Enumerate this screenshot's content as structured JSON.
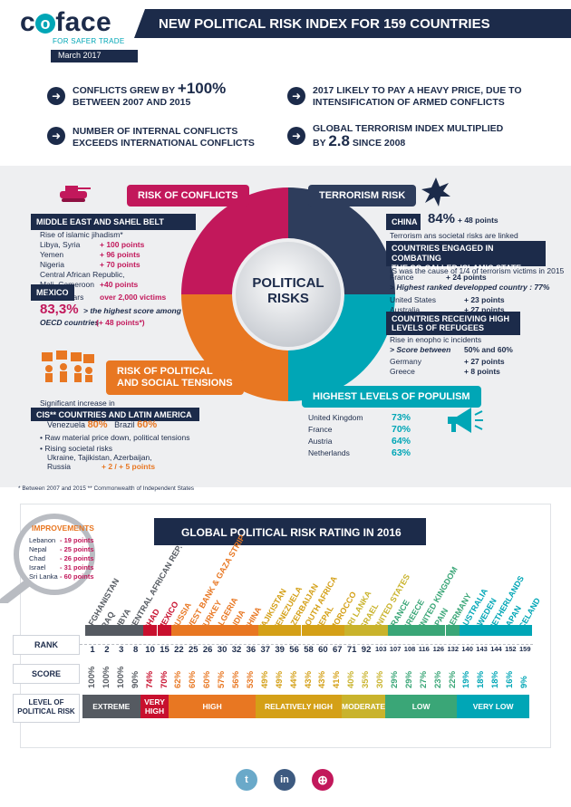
{
  "header": {
    "logo": "coface",
    "tagline": "FOR SAFER TRADE",
    "title": "NEW POLITICAL RISK INDEX FOR 159 COUNTRIES",
    "date": "March 2017"
  },
  "facts": [
    {
      "pre": "CONFLICTS GREW BY ",
      "big": "+100%",
      "post": "BETWEEN 2007 AND 2015"
    },
    {
      "pre": "NUMBER OF INTERNAL CONFLICTS",
      "big": "",
      "post": "EXCEEDS INTERNATIONAL CONFLICTS"
    },
    {
      "pre": "2017 LIKELY TO PAY A HEAVY PRICE, DUE TO",
      "big": "",
      "post": "INTENSIFICATION OF ARMED CONFLICTS"
    },
    {
      "pre": "GLOBAL TERRORISM INDEX MULTIPLIED",
      "big": "2.8",
      "post_pre": "BY ",
      "post": " SINCE 2008"
    }
  ],
  "center": {
    "label": "POLITICAL RISKS"
  },
  "conflicts": {
    "title": "RISK OF CONFLICTS",
    "mesb_band": "MIDDLE EAST AND SAHEL BELT",
    "mesb_sub": "Rise of islamic jihadism*",
    "rows": [
      {
        "name": "Libya, Syria",
        "value": "+ 100 points"
      },
      {
        "name": "Yemen",
        "value": "+ 96 points"
      },
      {
        "name": "Nigeria",
        "value": "+ 70 points"
      },
      {
        "name": "Central African Republic,",
        "value": ""
      },
      {
        "name": "Mali, Cameroon",
        "value": "+40 points"
      }
    ],
    "mexico_band": "MEXICO",
    "mexico_cartel": "• Cartel wars",
    "mexico_victims": "over 2,000 victims",
    "mexico_pct": "83,3%",
    "mexico_desc": "> the highest score among",
    "mexico_desc2": "OECD countries",
    "mexico_pts": "(+ 48 points*)"
  },
  "tensions": {
    "title_line1": "RISK OF POLITICAL",
    "title_line2": "AND SOCIAL TENSIONS",
    "intro": "Significant increase in",
    "band": "CIS** COUNTRIES AND LATIN AMERICA",
    "venezuela": "Venezuela",
    "venezuela_val": "80%",
    "brazil": "Brazil",
    "brazil_val": "60%",
    "bullet1": "• Raw material price down, political tensions",
    "bullet2": "• Rising societal risks",
    "countries": "Ukraine, Tajikistan, Azerbaijan,",
    "russia": "Russia",
    "russia_val": "+ 2 / + 5 points"
  },
  "terrorism": {
    "title": "TERRORISM RISK",
    "china_band": "CHINA",
    "china_pct": "84%",
    "china_pts": "+ 48 points",
    "china_sub": "Terrorism ans societal risks are linked",
    "combat_band1": "COUNTRIES ENGAGED IN COMBATING",
    "combat_band2": "THE SO-CALLED ISLAMIC STATE",
    "combat_sub": "IS was the cause of 1/4 of terrorism victims in 2015",
    "france": "France",
    "france_val": "+ 24 points",
    "france_note": "> Highest ranked developped country : 77%",
    "us": "United States",
    "us_val": "+ 23 points",
    "australia": "Australia",
    "australia_val": "+ 27 points",
    "refugee_band1": "COUNTRIES RECEIVING HIGH",
    "refugee_band2": "LEVELS OF REFUGEES",
    "refugee_sub": "Rise in   enopho   ic incidents",
    "score_between": "> Score between",
    "score_range": "50% and 60%",
    "germany": "Germany",
    "germany_val": "+ 27 points",
    "greece": "Greece",
    "greece_val": "+ 8 points"
  },
  "populism": {
    "title": "HIGHEST LEVELS OF POPULISM",
    "rows": [
      {
        "name": "United Kingdom",
        "value": "73%"
      },
      {
        "name": "France",
        "value": "70%"
      },
      {
        "name": "Austria",
        "value": "64%"
      },
      {
        "name": "Netherlands",
        "value": "63%"
      }
    ]
  },
  "footnote": "* Between 2007 and 2015    ** Commonwealth of Independent States",
  "improvements": {
    "title": "IMPROVEMENTS",
    "rows": [
      {
        "name": "Lebanon",
        "value": "- 19 points"
      },
      {
        "name": "Nepal",
        "value": "- 25 points"
      },
      {
        "name": "Chad",
        "value": "- 26 points"
      },
      {
        "name": "Israel",
        "value": "- 31 points"
      },
      {
        "name": "Sri Lanka",
        "value": "- 60 points"
      }
    ]
  },
  "rating": {
    "title": "GLOBAL POLITICAL RISK RATING IN 2016",
    "rank_label": "RANK",
    "score_label": "SCORE",
    "level_label": "LEVEL OF POLITICAL RISK",
    "countries": [
      "AFGHANISTAN",
      "IRAQ",
      "LIBYA",
      "CENTRAL AFRICAN REP.",
      "CHAD",
      "MEXICO",
      "RUSSIA",
      "WEST BANK & GAZA STRIP",
      "TURKEY",
      "ALGERIA",
      "INDIA",
      "CHINA",
      "TAJIKISTAN",
      "VENEZUELA",
      "AZERBAIJAN",
      "SOUTH AFRICA",
      "NEPAL",
      "MOROCCO",
      "SRI LANKA",
      "ISRAEL",
      "UNITED STATES",
      "FRANCE",
      "GREECE",
      "UNITED KINGDOM",
      "SPAIN",
      "GERMANY",
      "AUSTRALIA",
      "SWEDEN",
      "NETHERLANDS",
      "JAPAN",
      "ICELAND"
    ],
    "ranks": [
      "1",
      "2",
      "3",
      "8",
      "10",
      "15",
      "22",
      "25",
      "26",
      "30",
      "32",
      "36",
      "37",
      "39",
      "56",
      "58",
      "60",
      "67",
      "71",
      "92",
      "103",
      "107",
      "108",
      "116",
      "126",
      "132",
      "140",
      "143",
      "144",
      "152",
      "159"
    ],
    "scores": [
      "100%",
      "100%",
      "100%",
      "90%",
      "74%",
      "70%",
      "62%",
      "60%",
      "60%",
      "57%",
      "56%",
      "53%",
      "49%",
      "49%",
      "44%",
      "43%",
      "43%",
      "41%",
      "40%",
      "35%",
      "30%",
      "29%",
      "29%",
      "27%",
      "23%",
      "22%",
      "19%",
      "18%",
      "18%",
      "16%",
      "9%"
    ],
    "levels": [
      {
        "label": "EXTREME",
        "color": "#555a61"
      },
      {
        "label": "VERY HIGH",
        "color": "#c8102e"
      },
      {
        "label": "HIGH",
        "color": "#e87722"
      },
      {
        "label": "RELATIVELY HIGH",
        "color": "#d4a017"
      },
      {
        "label": "MODERATE",
        "color": "#c9b32c"
      },
      {
        "label": "LOW",
        "color": "#3aa677"
      },
      {
        "label": "VERY LOW",
        "color": "#00a6b6"
      }
    ]
  },
  "social": {
    "twitter": "t",
    "linkedin": "in",
    "web": "⊕"
  }
}
